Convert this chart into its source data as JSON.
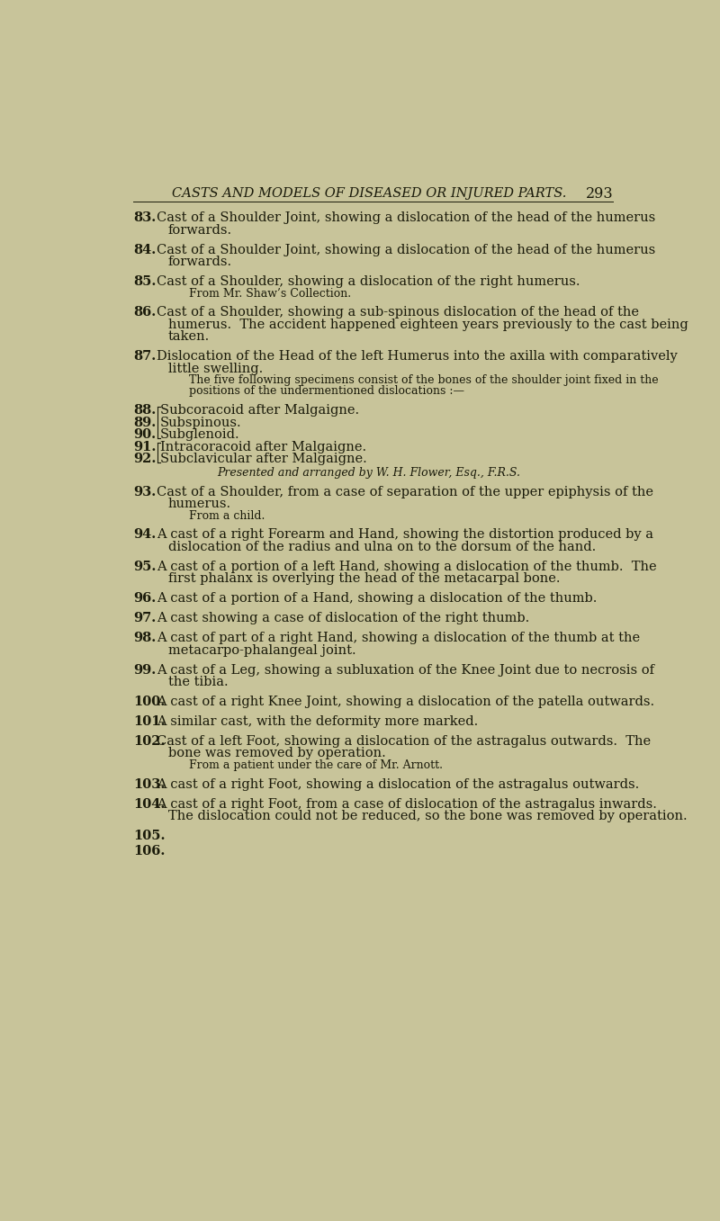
{
  "background_color": "#c8c49a",
  "text_color": "#1a1a0a",
  "header_text": "CASTS AND MODELS OF DISEASED OR INJURED PARTS.",
  "page_number": "293",
  "header_fontsize": 10.5,
  "body_fontsize": 10.5,
  "small_fontsize": 9.0,
  "entries": [
    {
      "number": "83.",
      "text": "Cast of a Shoulder Joint, showing a dislocation of the head of the humerus\nforwards.",
      "sub": null
    },
    {
      "number": "84.",
      "text": "Cast of a Shoulder Joint, showing a dislocation of the head of the humerus\nforwards.",
      "sub": null
    },
    {
      "number": "85.",
      "text": "Cast of a Shoulder, showing a dislocation of the right humerus.",
      "sub": "From Mr. Shaw’s Collection."
    },
    {
      "number": "86.",
      "text": "Cast of a Shoulder, showing a sub-spinous dislocation of the head of the\nhumerus.  The accident happened eighteen years previously to the cast being\ntaken.",
      "sub": null
    },
    {
      "number": "87.",
      "text": "Dislocation of the Head of the left Humerus into the axilla with comparatively\nlittle swelling.",
      "sub": "The five following specimens consist of the bones of the shoulder joint fixed in the\npositions of the undermentioned dislocations :—"
    },
    {
      "number": "88-92",
      "text": "",
      "sub": null,
      "grouped": true,
      "group_items": [
        {
          "num": "88.",
          "bracket_char": "⎧",
          "text": "Subcoracoid after Malgaigne."
        },
        {
          "num": "89.",
          "bracket_char": "⎪",
          "text": "Subspinous."
        },
        {
          "num": "90.",
          "bracket_char": "⎩",
          "text": "Subglenoid."
        },
        {
          "num": "91.",
          "bracket_char": "⎧",
          "text": "Intracoracoid after Malgaigne."
        },
        {
          "num": "92.",
          "bracket_char": "⎩",
          "text": "Subclavicular after Malgaigne."
        }
      ],
      "group_sub": "Presented and arranged by W. H. Flower, Esq., F.R.S."
    },
    {
      "number": "93.",
      "text": "Cast of a Shoulder, from a case of separation of the upper epiphysis of the\nhumerus.",
      "sub": "From a child."
    },
    {
      "number": "94.",
      "text": "A cast of a right Forearm and Hand, showing the distortion produced by a\ndislocation of the radius and ulna on to the dorsum of the hand.",
      "sub": null
    },
    {
      "number": "95.",
      "text": "A cast of a portion of a left Hand, showing a dislocation of the thumb.  The\nfirst phalanx is overlying the head of the metacarpal bone.",
      "sub": null
    },
    {
      "number": "96.",
      "text": "A cast of a portion of a Hand, showing a dislocation of the thumb.",
      "sub": null
    },
    {
      "number": "97.",
      "text": "A cast showing a case of dislocation of the right thumb.",
      "sub": null
    },
    {
      "number": "98.",
      "text": "A cast of part of a right Hand, showing a dislocation of the thumb at the\nmetacarpo-phalangeal joint.",
      "sub": null
    },
    {
      "number": "99.",
      "text": "A cast of a Leg, showing a subluxation of the Knee Joint due to necrosis of\nthe tibia.",
      "sub": null
    },
    {
      "number": "100.",
      "text": "A cast of a right Knee Joint, showing a dislocation of the patella outwards.",
      "sub": null
    },
    {
      "number": "101.",
      "text": "A similar cast, with the deformity more marked.",
      "sub": null
    },
    {
      "number": "102.",
      "text": "Cast of a left Foot, showing a dislocation of the astragalus outwards.  The\nbone was removed by operation.",
      "sub": "From a patient under the care of Mr. Arnott."
    },
    {
      "number": "103.",
      "text": "A cast of a right Foot, showing a dislocation of the astragalus outwards.",
      "sub": null
    },
    {
      "number": "104.",
      "text": "A cast of a right Foot, from a case of dislocation of the astragalus inwards.\nThe dislocation could not be reduced, so the bone was removed by operation.",
      "sub": null
    },
    {
      "number": "105.",
      "text": "",
      "sub": null
    },
    {
      "number": "106.",
      "text": "",
      "sub": null
    }
  ]
}
